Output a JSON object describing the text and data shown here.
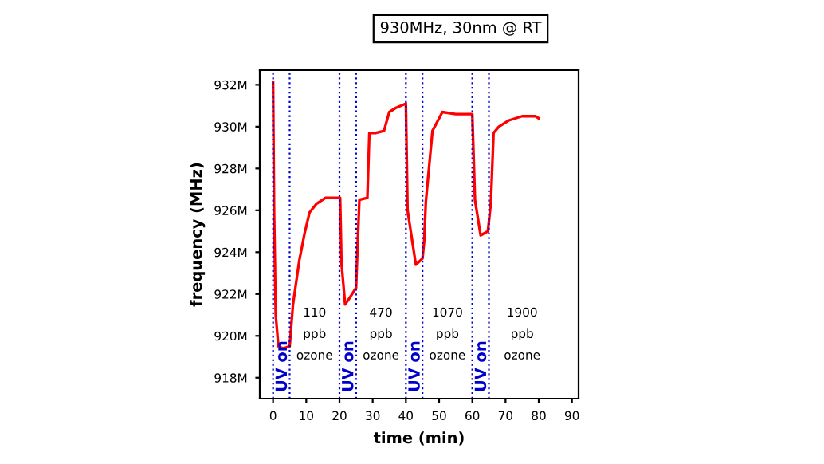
{
  "chart_data": {
    "type": "line",
    "title": "930MHz, 30nm @ RT",
    "xlabel": "time (min)",
    "ylabel": "frequency (MHz)",
    "series": [
      {
        "color": "#ff0000",
        "x": [
          0,
          0.3,
          0.8,
          1.6,
          3,
          5,
          6,
          7.9,
          9.5,
          11,
          13,
          15.8,
          18,
          20.2,
          20.6,
          21.7,
          23,
          25,
          25.5,
          26,
          28.4,
          29,
          31,
          33.4,
          35,
          37,
          40,
          40.5,
          43,
          45,
          45.5,
          46,
          48,
          51,
          55,
          60,
          60.8,
          62.5,
          64.7,
          65.6,
          66.4,
          68,
          71,
          75,
          79,
          80
        ],
        "values": [
          932.1,
          926,
          921,
          919.5,
          919.4,
          919.5,
          921.5,
          923.6,
          924.9,
          925.9,
          926.3,
          926.6,
          926.6,
          926.6,
          923.5,
          921.5,
          921.8,
          922.3,
          924.5,
          926.5,
          926.6,
          929.7,
          929.7,
          929.8,
          930.7,
          930.9,
          931.1,
          926,
          923.4,
          923.7,
          924.5,
          926.4,
          929.8,
          930.7,
          930.6,
          930.6,
          926.5,
          924.8,
          925,
          926.4,
          929.7,
          930,
          930.3,
          930.5,
          930.5,
          930.4
        ]
      }
    ],
    "xlim": [
      -4,
      92
    ],
    "xticks": [
      0,
      10,
      20,
      30,
      40,
      50,
      60,
      70,
      80,
      90
    ],
    "ylim": [
      917,
      932.7
    ],
    "yticks": [
      {
        "value": 918,
        "label": "918M"
      },
      {
        "value": 920,
        "label": "920M"
      },
      {
        "value": 922,
        "label": "922M"
      },
      {
        "value": 924,
        "label": "924M"
      },
      {
        "value": 926,
        "label": "926M"
      },
      {
        "value": 928,
        "label": "928M"
      },
      {
        "value": 930,
        "label": "930M"
      },
      {
        "value": 932,
        "label": "932M"
      }
    ],
    "ref_lines": [
      {
        "axis": "x",
        "value": 0,
        "label": "UV on",
        "color": "#0000cc",
        "line_style": "dotted"
      },
      {
        "axis": "x",
        "value": 5,
        "color": "#0000cc",
        "line_style": "dotted"
      },
      {
        "axis": "x",
        "value": 20,
        "label": "UV on",
        "color": "#0000cc",
        "line_style": "dotted"
      },
      {
        "axis": "x",
        "value": 25,
        "color": "#0000cc",
        "line_style": "dotted"
      },
      {
        "axis": "x",
        "value": 40,
        "label": "UV on",
        "color": "#0000cc",
        "line_style": "dotted"
      },
      {
        "axis": "x",
        "value": 45,
        "color": "#0000cc",
        "line_style": "dotted"
      },
      {
        "axis": "x",
        "value": 60,
        "label": "UV on",
        "color": "#0000cc",
        "line_style": "dotted"
      },
      {
        "axis": "x",
        "value": 65,
        "color": "#0000cc",
        "line_style": "dotted"
      }
    ],
    "annotations": [
      "110",
      "ppb",
      "ozone",
      "470",
      "ppb",
      "ozone",
      "1070",
      "ppb",
      "ozone",
      "1900",
      "ppb",
      "ozone"
    ],
    "grid": false,
    "legend": false,
    "marker": "none",
    "line_style": "solid"
  }
}
